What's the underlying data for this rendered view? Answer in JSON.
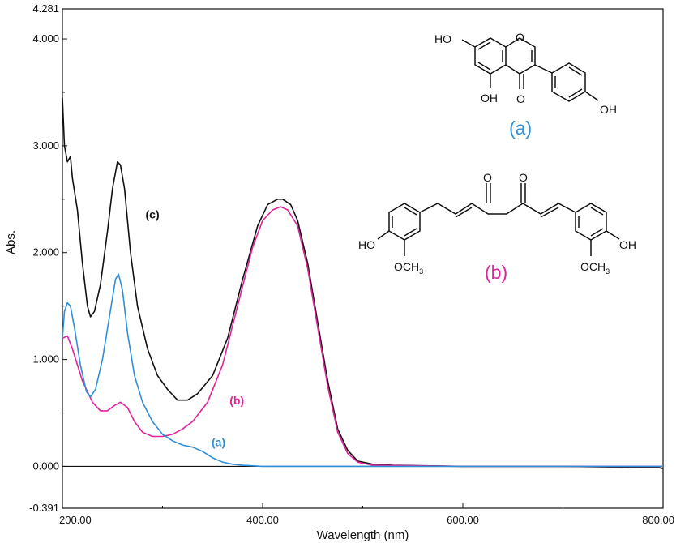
{
  "chart_data": {
    "type": "line",
    "xlabel": "Wavelength (nm)",
    "ylabel": "Abs.",
    "xlim": [
      200,
      800
    ],
    "ylim": [
      -0.391,
      4.281
    ],
    "x_ticks": [
      "200.00",
      "400.00",
      "600.00",
      "800.00"
    ],
    "y_ticks": [
      {
        "value": -0.391,
        "label": "-0.391"
      },
      {
        "value": 0,
        "label": "0.000"
      },
      {
        "value": 1,
        "label": "1.000"
      },
      {
        "value": 2,
        "label": "2.000"
      },
      {
        "value": 3,
        "label": "3.000"
      },
      {
        "value": 4,
        "label": "4.000"
      },
      {
        "value": 4.281,
        "label": "4.281"
      }
    ],
    "grid": false,
    "series": [
      {
        "name": "(c)",
        "color": "#111111",
        "points": [
          [
            200,
            3.45
          ],
          [
            202,
            3.0
          ],
          [
            205,
            2.85
          ],
          [
            208,
            2.9
          ],
          [
            210,
            2.7
          ],
          [
            215,
            2.4
          ],
          [
            220,
            1.9
          ],
          [
            225,
            1.5
          ],
          [
            228,
            1.4
          ],
          [
            232,
            1.45
          ],
          [
            238,
            1.7
          ],
          [
            245,
            2.2
          ],
          [
            250,
            2.6
          ],
          [
            255,
            2.85
          ],
          [
            258,
            2.82
          ],
          [
            262,
            2.6
          ],
          [
            268,
            2.0
          ],
          [
            275,
            1.5
          ],
          [
            285,
            1.1
          ],
          [
            295,
            0.85
          ],
          [
            305,
            0.72
          ],
          [
            315,
            0.62
          ],
          [
            325,
            0.62
          ],
          [
            335,
            0.68
          ],
          [
            350,
            0.85
          ],
          [
            365,
            1.2
          ],
          [
            380,
            1.75
          ],
          [
            395,
            2.25
          ],
          [
            405,
            2.45
          ],
          [
            415,
            2.5
          ],
          [
            420,
            2.5
          ],
          [
            428,
            2.45
          ],
          [
            435,
            2.3
          ],
          [
            445,
            1.9
          ],
          [
            455,
            1.35
          ],
          [
            465,
            0.8
          ],
          [
            475,
            0.35
          ],
          [
            485,
            0.15
          ],
          [
            495,
            0.05
          ],
          [
            510,
            0.02
          ],
          [
            530,
            0.01
          ],
          [
            600,
            0.0
          ],
          [
            700,
            0.0
          ],
          [
            780,
            -0.01
          ],
          [
            795,
            -0.01
          ],
          [
            800,
            -0.02
          ]
        ]
      },
      {
        "name": "(b)",
        "color": "#e0239b",
        "points": [
          [
            200,
            1.2
          ],
          [
            205,
            1.22
          ],
          [
            210,
            1.1
          ],
          [
            220,
            0.8
          ],
          [
            230,
            0.6
          ],
          [
            238,
            0.52
          ],
          [
            245,
            0.52
          ],
          [
            252,
            0.57
          ],
          [
            258,
            0.6
          ],
          [
            265,
            0.55
          ],
          [
            272,
            0.42
          ],
          [
            280,
            0.32
          ],
          [
            290,
            0.28
          ],
          [
            300,
            0.28
          ],
          [
            310,
            0.3
          ],
          [
            320,
            0.35
          ],
          [
            330,
            0.42
          ],
          [
            345,
            0.6
          ],
          [
            360,
            0.95
          ],
          [
            375,
            1.5
          ],
          [
            390,
            2.05
          ],
          [
            400,
            2.3
          ],
          [
            410,
            2.4
          ],
          [
            418,
            2.43
          ],
          [
            425,
            2.4
          ],
          [
            435,
            2.25
          ],
          [
            445,
            1.85
          ],
          [
            455,
            1.3
          ],
          [
            465,
            0.75
          ],
          [
            475,
            0.32
          ],
          [
            485,
            0.12
          ],
          [
            495,
            0.04
          ],
          [
            510,
            0.01
          ],
          [
            600,
            0.0
          ],
          [
            800,
            0.0
          ]
        ]
      },
      {
        "name": "(a)",
        "color": "#2f8fd8",
        "points": [
          [
            200,
            1.2
          ],
          [
            202,
            1.45
          ],
          [
            205,
            1.53
          ],
          [
            208,
            1.5
          ],
          [
            212,
            1.3
          ],
          [
            218,
            0.95
          ],
          [
            224,
            0.7
          ],
          [
            228,
            0.65
          ],
          [
            233,
            0.72
          ],
          [
            240,
            1.0
          ],
          [
            247,
            1.4
          ],
          [
            253,
            1.75
          ],
          [
            256,
            1.8
          ],
          [
            260,
            1.65
          ],
          [
            265,
            1.25
          ],
          [
            272,
            0.85
          ],
          [
            280,
            0.6
          ],
          [
            290,
            0.42
          ],
          [
            300,
            0.3
          ],
          [
            310,
            0.24
          ],
          [
            320,
            0.2
          ],
          [
            330,
            0.18
          ],
          [
            340,
            0.14
          ],
          [
            350,
            0.08
          ],
          [
            360,
            0.04
          ],
          [
            370,
            0.02
          ],
          [
            380,
            0.01
          ],
          [
            400,
            0.0
          ],
          [
            500,
            0.0
          ],
          [
            600,
            0.0
          ],
          [
            700,
            0.0
          ],
          [
            800,
            0.0
          ]
        ]
      }
    ],
    "curve_labels": [
      {
        "text": "(c)",
        "x": 283,
        "y": 2.32,
        "series": 0
      },
      {
        "text": "(b)",
        "x": 367,
        "y": 0.58,
        "series": 1
      },
      {
        "text": "(a)",
        "x": 349,
        "y": 0.19,
        "series": 2
      }
    ]
  },
  "structures": {
    "a": {
      "label": "(a)",
      "color": "#2f8fd8",
      "atoms": [
        "HO",
        "O",
        "OH",
        "O",
        "OH"
      ]
    },
    "b": {
      "label": "(b)",
      "color": "#e0239b",
      "atoms": [
        "O",
        "O",
        "HO",
        "OCH",
        "3",
        "OCH",
        "3",
        "OH"
      ]
    }
  }
}
